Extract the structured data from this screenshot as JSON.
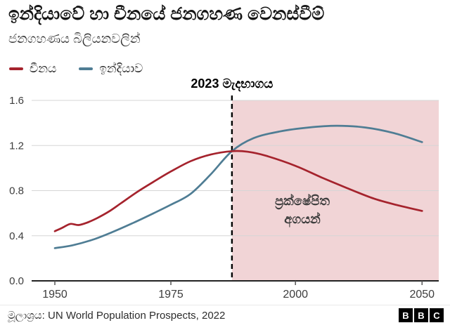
{
  "header": {
    "title": "ඉන්දියාවේ හා චීනයේ ජනගහණ වෙනස්වීම්",
    "subtitle": "ජනගහණය බිලියනවලින්"
  },
  "chart_data": {
    "type": "line",
    "title": "ඉන්දියාවේ හා චීනයේ ජනගහණ වෙනස්වීම්",
    "subtitle": "ජනගහණය බිලියනවලින්",
    "unit": "billions",
    "ylim": [
      0,
      1.6
    ],
    "yticks": [
      0,
      0.4,
      0.8,
      1.2,
      1.6
    ],
    "grid": true,
    "legend_position": "top-left",
    "colors": {
      "grid": "#d6d6d6",
      "baseline": "#222222",
      "tick": "#555555",
      "axis_text": "#3d3d3d"
    },
    "xticks": [
      {
        "label": "1950",
        "pos": 0.057
      },
      {
        "label": "1975",
        "pos": 0.342
      },
      {
        "label": "2000",
        "pos": 0.648
      },
      {
        "label": "2050",
        "pos": 0.959
      }
    ],
    "annotation_line": {
      "label": "2023 මැදභාගය",
      "pos": 0.492
    },
    "projection_region": {
      "from_pos": 0.492,
      "to_pos": 1.0,
      "color": "#f1d4d6",
      "label_lines": [
        "ප්‍රක්ෂේපිත",
        "අගයන්"
      ],
      "label_pos": 0.665
    },
    "series": [
      {
        "id": "china",
        "name": "චීනය",
        "color": "#a5232d",
        "points": [
          [
            0.057,
            0.44
          ],
          [
            0.075,
            0.47
          ],
          [
            0.095,
            0.505
          ],
          [
            0.115,
            0.495
          ],
          [
            0.135,
            0.515
          ],
          [
            0.16,
            0.555
          ],
          [
            0.19,
            0.615
          ],
          [
            0.22,
            0.69
          ],
          [
            0.26,
            0.79
          ],
          [
            0.3,
            0.88
          ],
          [
            0.342,
            0.97
          ],
          [
            0.39,
            1.06
          ],
          [
            0.44,
            1.12
          ],
          [
            0.492,
            1.15
          ],
          [
            0.53,
            1.145
          ],
          [
            0.575,
            1.11
          ],
          [
            0.648,
            1.02
          ],
          [
            0.71,
            0.92
          ],
          [
            0.77,
            0.83
          ],
          [
            0.84,
            0.73
          ],
          [
            0.9,
            0.67
          ],
          [
            0.959,
            0.62
          ]
        ]
      },
      {
        "id": "india",
        "name": "ඉන්දියාව",
        "color": "#4f7d94",
        "points": [
          [
            0.057,
            0.29
          ],
          [
            0.1,
            0.315
          ],
          [
            0.15,
            0.365
          ],
          [
            0.2,
            0.435
          ],
          [
            0.25,
            0.515
          ],
          [
            0.3,
            0.6
          ],
          [
            0.342,
            0.675
          ],
          [
            0.39,
            0.77
          ],
          [
            0.44,
            0.945
          ],
          [
            0.492,
            1.15
          ],
          [
            0.545,
            1.265
          ],
          [
            0.61,
            1.325
          ],
          [
            0.68,
            1.36
          ],
          [
            0.75,
            1.375
          ],
          [
            0.82,
            1.36
          ],
          [
            0.89,
            1.31
          ],
          [
            0.959,
            1.23
          ]
        ]
      }
    ]
  },
  "footer": {
    "source": "මූලාශ්‍රය:  UN World Population Prospects, 2022",
    "logo": [
      "B",
      "B",
      "C"
    ]
  }
}
